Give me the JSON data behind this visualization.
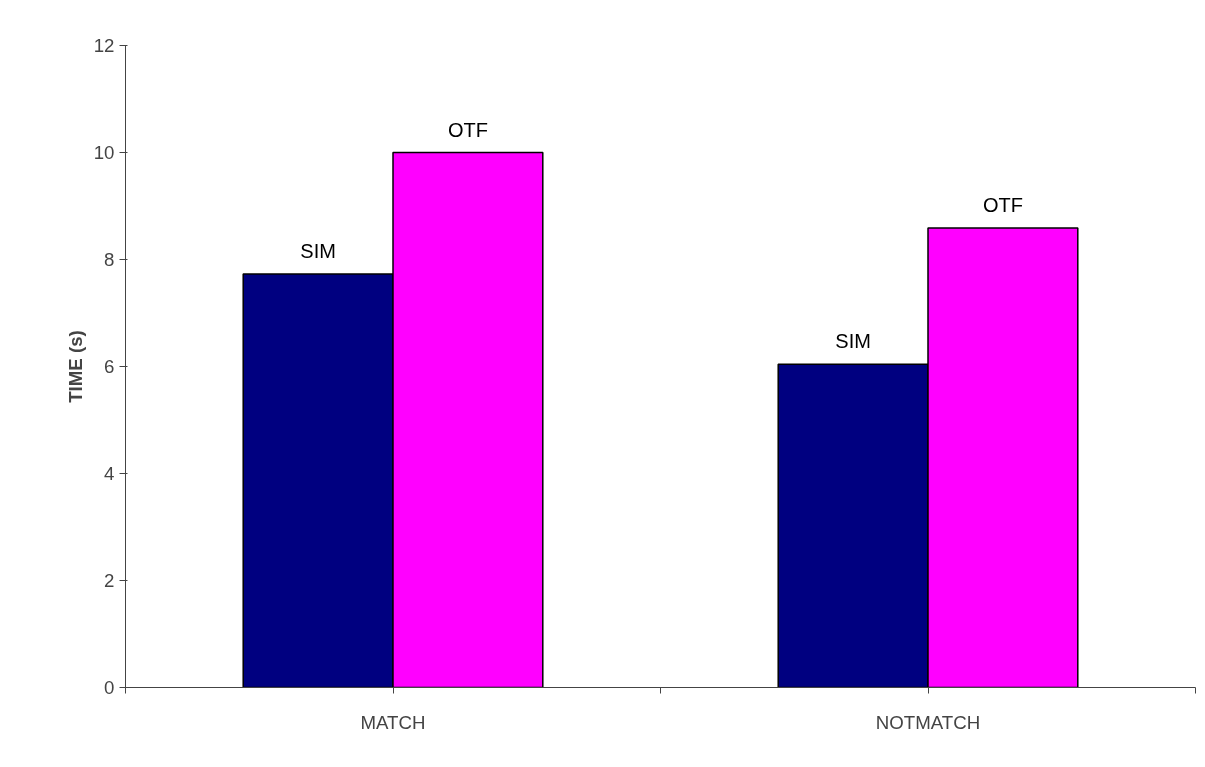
{
  "chart_data": {
    "type": "bar",
    "ylabel": "TIME (s)",
    "categories": [
      "MATCH",
      "NOTMATCH"
    ],
    "series": [
      {
        "name": "SIM",
        "color": "#000080",
        "values": [
          7.73,
          6.04
        ]
      },
      {
        "name": "OTF",
        "color": "#ff00ff",
        "values": [
          10.0,
          8.59
        ]
      }
    ],
    "ylim": [
      0,
      12
    ],
    "yticks": [
      0,
      2,
      4,
      6,
      8,
      10,
      12
    ],
    "grid": false
  }
}
